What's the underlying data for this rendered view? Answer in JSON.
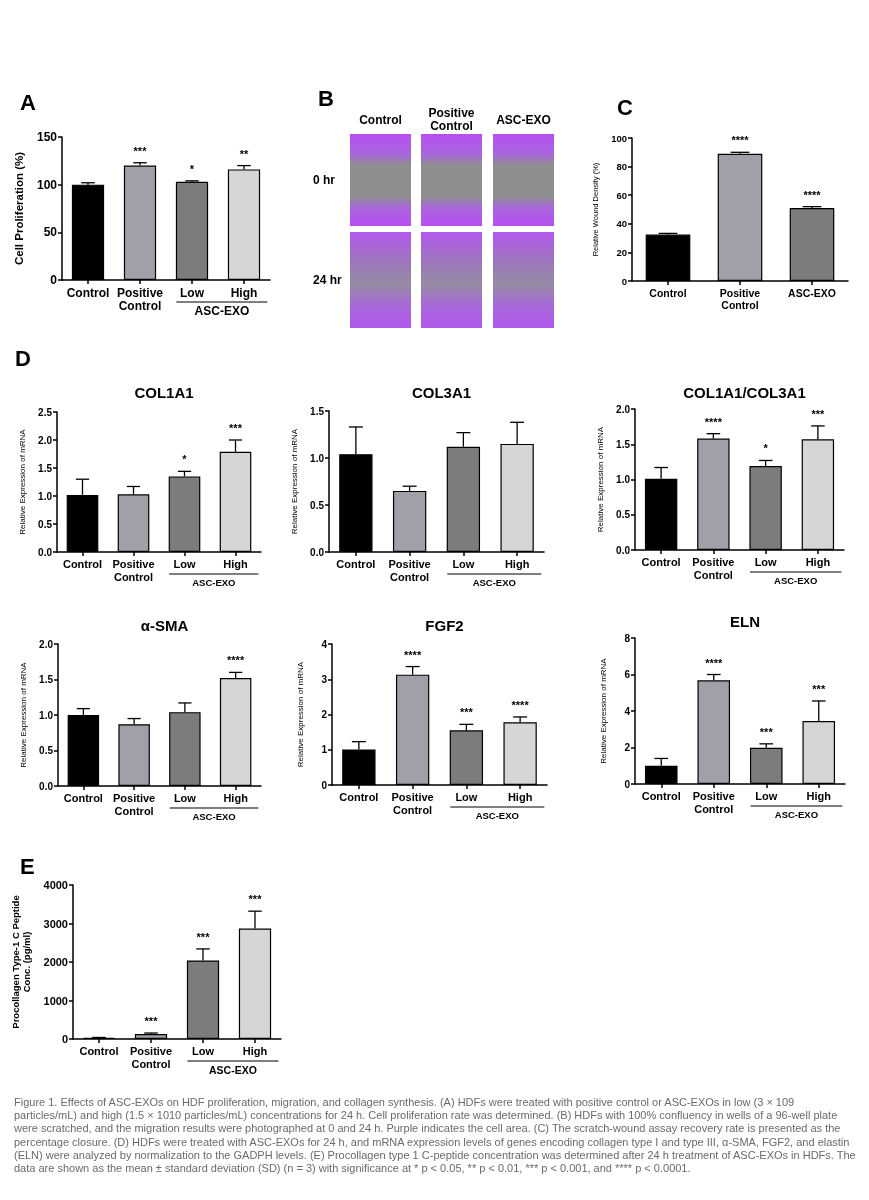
{
  "chart_data": [
    {
      "type": "bar",
      "title": "A",
      "ylabel": "Cell Proliferation (%)",
      "categories": [
        "Control",
        "Positive Control",
        "Low",
        "High"
      ],
      "values": [
        100,
        120,
        103,
        116
      ],
      "colors": [
        "#000000",
        "#a0a0a8",
        "#7c7c7c",
        "#d6d6d6"
      ],
      "errors": [
        [
          100,
          102
        ],
        [
          120,
          123
        ],
        [
          103,
          104
        ],
        [
          116,
          120
        ]
      ],
      "ylim": [
        0,
        150
      ],
      "yticks": [
        0,
        50,
        100,
        150
      ],
      "annotations": [
        "***",
        "*",
        "**",
        "ASC-EXO"
      ]
    },
    {
      "type": "other",
      "title": "B",
      "categories": [
        "Control",
        "Positive Control",
        "ASC-EXO"
      ],
      "y_categories": [
        "0 hr",
        "24 hr"
      ]
    },
    {
      "type": "bar",
      "title": "C",
      "ylabel": "Relative Wound Density (%)",
      "categories": [
        "Control",
        "Positive Control",
        "ASC-EXO"
      ],
      "values": [
        32.5,
        89,
        51
      ],
      "colors": [
        "#000000",
        "#a0a0a8",
        "#7c7c7c"
      ],
      "errors": [
        [
          32.5,
          33.3
        ],
        [
          89,
          90
        ],
        [
          51,
          52
        ]
      ],
      "ylim": [
        0,
        100
      ],
      "yticks": [
        0,
        20,
        40,
        60,
        80,
        100
      ],
      "annotations": [
        "****",
        "****"
      ]
    },
    {
      "type": "bar",
      "title": "COL1A1",
      "ylabel": "Relative Expression of mRNA",
      "categories": [
        "Control",
        "Positive Control",
        "Low",
        "High"
      ],
      "values": [
        1.02,
        1.03,
        1.35,
        1.79
      ],
      "colors": [
        "#000000",
        "#a0a0a8",
        "#7c7c7c",
        "#d6d6d6"
      ],
      "errors": [
        [
          1.02,
          1.3
        ],
        [
          1.03,
          1.17
        ],
        [
          1.35,
          1.44
        ],
        [
          1.79,
          2.0
        ]
      ],
      "ylim": [
        0,
        2.5
      ],
      "yticks": [
        {
          "value": 0,
          "label": "0.0"
        },
        0.5,
        {
          "value": 1,
          "label": "1.0"
        },
        1.5,
        {
          "value": 2,
          "label": "2.0"
        },
        2.5
      ],
      "annotations": [
        "D",
        "*",
        "***",
        "ASC-EXO"
      ]
    },
    {
      "type": "bar",
      "title": "COL3A1",
      "ylabel": "Relative Expression of mRNA",
      "categories": [
        "Control",
        "Positive Control",
        "Low",
        "High"
      ],
      "values": [
        1.04,
        0.65,
        1.12,
        1.15
      ],
      "colors": [
        "#000000",
        "#a0a0a8",
        "#7c7c7c",
        "#d6d6d6"
      ],
      "errors": [
        [
          1.04,
          1.33
        ],
        [
          0.65,
          0.7
        ],
        [
          1.12,
          1.27
        ],
        [
          1.15,
          1.38
        ]
      ],
      "ylim": [
        0,
        1.5
      ],
      "yticks": [
        {
          "value": 0,
          "label": "0.0"
        },
        0.5,
        {
          "value": 1,
          "label": "1.0"
        },
        1.5
      ],
      "annotations": [
        "ASC-EXO"
      ]
    },
    {
      "type": "bar",
      "title": "COL1A1/COL3A1",
      "ylabel": "Relative Expression of mRNA",
      "categories": [
        "Control",
        "Positive Control",
        "Low",
        "High"
      ],
      "values": [
        1.01,
        1.58,
        1.19,
        1.57
      ],
      "colors": [
        "#000000",
        "#a0a0a8",
        "#7c7c7c",
        "#d6d6d6"
      ],
      "errors": [
        [
          1.01,
          1.17
        ],
        [
          1.58,
          1.65
        ],
        [
          1.19,
          1.27
        ],
        [
          1.57,
          1.76
        ]
      ],
      "ylim": [
        0,
        2
      ],
      "yticks": [
        {
          "value": 0,
          "label": "0.0"
        },
        0.5,
        {
          "value": 1,
          "label": "1.0"
        },
        1.5,
        {
          "value": 2,
          "label": "2.0"
        }
      ],
      "annotations": [
        "****",
        "*",
        "***",
        "ASC-EXO"
      ]
    },
    {
      "type": "bar",
      "title": "α-SMA",
      "ylabel": "Relative Expression of mRNA",
      "categories": [
        "Control",
        "Positive Control",
        "Low",
        "High"
      ],
      "values": [
        1.0,
        0.87,
        1.04,
        1.52
      ],
      "colors": [
        "#000000",
        "#a0a0a8",
        "#7c7c7c",
        "#d6d6d6"
      ],
      "errors": [
        [
          1.0,
          1.09
        ],
        [
          0.87,
          0.95
        ],
        [
          1.04,
          1.17
        ],
        [
          1.52,
          1.6
        ]
      ],
      "ylim": [
        0,
        2
      ],
      "yticks": [
        {
          "value": 0,
          "label": "0.0"
        },
        0.5,
        {
          "value": 1,
          "label": "1.0"
        },
        1.5,
        {
          "value": 2,
          "label": "2.0"
        }
      ],
      "annotations": [
        "****",
        "ASC-EXO"
      ]
    },
    {
      "type": "bar",
      "title": "FGF2",
      "ylabel": "Relative Expression of mRNA",
      "categories": [
        "Control",
        "Positive Control",
        "Low",
        "High"
      ],
      "values": [
        1.01,
        3.13,
        1.55,
        1.78
      ],
      "colors": [
        "#000000",
        "#a0a0a8",
        "#7c7c7c",
        "#d6d6d6"
      ],
      "errors": [
        [
          1.01,
          1.23
        ],
        [
          3.13,
          3.36
        ],
        [
          1.55,
          1.72
        ],
        [
          1.78,
          1.93
        ]
      ],
      "ylim": [
        0,
        4
      ],
      "yticks": [
        0,
        1,
        2,
        3,
        4
      ],
      "annotations": [
        "****",
        "***",
        "****",
        "ASC-EXO"
      ]
    },
    {
      "type": "bar",
      "title": "ELN",
      "ylabel": "Relative Expression of mRNA",
      "categories": [
        "Control",
        "Positive Control",
        "Low",
        "High"
      ],
      "values": [
        1.0,
        5.68,
        1.98,
        3.45
      ],
      "colors": [
        "#000000",
        "#a0a0a8",
        "#7c7c7c",
        "#d6d6d6"
      ],
      "errors": [
        [
          1.0,
          1.4
        ],
        [
          5.68,
          6.0
        ],
        [
          1.98,
          2.2
        ],
        [
          3.45,
          4.55
        ]
      ],
      "ylim": [
        0,
        8
      ],
      "yticks": [
        0,
        2,
        4,
        6,
        8
      ],
      "annotations": [
        "****",
        "***",
        "***",
        "ASC-EXO"
      ]
    },
    {
      "type": "bar",
      "title": "E",
      "ylabel": "Procollagen Type-1 C Peptide Conc. (pg/ml)",
      "categories": [
        "Control",
        "Positive Control",
        "Low",
        "High"
      ],
      "values": [
        30,
        130,
        2040,
        2870
      ],
      "colors": [
        "#000000",
        "#a0a0a8",
        "#7c7c7c",
        "#d6d6d6"
      ],
      "errors": [
        [
          30,
          40
        ],
        [
          130,
          155
        ],
        [
          2040,
          2340
        ],
        [
          2870,
          3320
        ]
      ],
      "ylim": [
        0,
        4000
      ],
      "yticks": [
        0,
        1000,
        2000,
        3000,
        4000
      ],
      "annotations": [
        "***",
        "***",
        "***",
        "ASC-EXO"
      ]
    },
    {
      "type": "other",
      "annotations": [
        "Figure 1. Effects of ASC-EXOs on HDF proliferation, migration, and collagen synthesis. (A) HDFs were treated with positive control or ASC-EXOs in low (3 × 109 particles/mL) and high (1.5 × 1010 particles/mL) concentrations for 24 h. Cell proliferation rate was determined. (B) HDFs with 100% confluency in wells of a 96-well plate were scratched, and the migration results were photographed at 0 and 24 h. Purple indicates the cell area. (C) The scratch-wound assay recovery rate is presented as the percentage closure. (D) HDFs were treated with ASC-EXOs for 24 h, and mRNA expression levels of genes encoding collagen type I and type III, α-SMA, FGF2, and elastin (ELN) were analyzed by normalization to the GADPH levels. (E) Procollagen type 1 C-peptide concentration was determined after 24 h treatment of ASC-EXOs in HDFs. The data are shown as the mean ± standard deviation (SD) (n = 3) with significance at * p < 0.05, ** p < 0.01, *** p < 0.001, and **** p < 0.0001."
      ]
    }
  ]
}
